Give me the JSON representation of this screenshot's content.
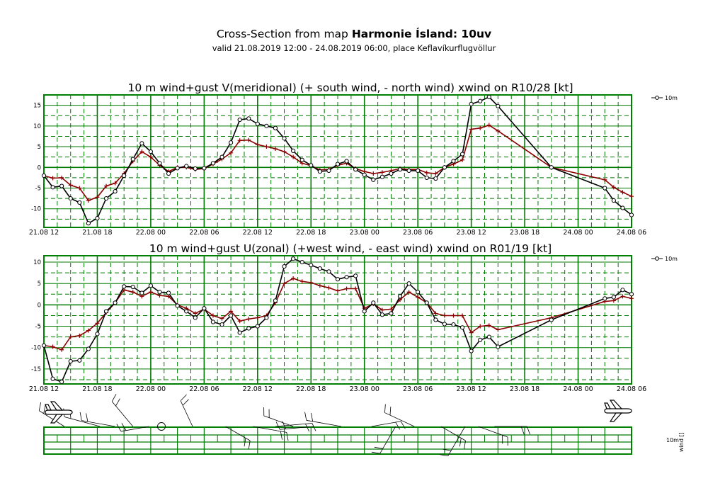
{
  "header": {
    "title_prefix": "Cross-Section from map ",
    "title_bold": "Harmonie Ísland: 10uv",
    "subtitle": "valid 21.08.2019 12:00 - 24.08.2019 06:00, place Keflavíkurflugvöllur"
  },
  "colors": {
    "wind": "#000000",
    "gust": "#8b0000",
    "grid": "#007a00",
    "frame": "#008000"
  },
  "chart_data": [
    {
      "type": "line",
      "title": "10 m wind+gust V(meridional) (+ south wind, - north wind) xwind on R10/28 [kt]",
      "x_unit": "hours since 21.08 12",
      "xlim": [
        0,
        66
      ],
      "ylim": [
        -14.5,
        17.5
      ],
      "yticks": [
        15,
        10,
        5,
        0,
        -5,
        -10
      ],
      "xtick_labels": [
        "21.08 12",
        "21.08 18",
        "22.08 00",
        "22.08 06",
        "22.08 12",
        "22.08 18",
        "23.08 00",
        "23.08 06",
        "23.08 12",
        "23.08 18",
        "24.08 00",
        "24.08 06"
      ],
      "legend": "10m",
      "series": [
        {
          "name": "10m",
          "x": [
            0,
            1,
            2,
            3,
            4,
            5,
            6,
            7,
            8,
            9,
            10,
            11,
            12,
            13,
            14,
            15,
            16,
            17,
            18,
            19,
            20,
            21,
            22,
            23,
            24,
            25,
            26,
            27,
            28,
            29,
            30,
            31,
            32,
            33,
            34,
            35,
            36,
            37,
            38,
            39,
            40,
            41,
            42,
            43,
            44,
            45,
            46,
            47,
            48,
            49,
            50,
            51,
            57,
            63,
            64,
            65,
            66
          ],
          "y": [
            -2,
            -4.8,
            -4.5,
            -7.5,
            -8.5,
            -13.5,
            -12.3,
            -7.5,
            -5.8,
            -2,
            2,
            5.8,
            3.8,
            1,
            -1.5,
            -0.2,
            0.3,
            -0.3,
            -0.2,
            1,
            2.5,
            6,
            11.5,
            11.8,
            10.5,
            10,
            9.5,
            7,
            4,
            1.8,
            0.5,
            -1,
            -0.8,
            0.8,
            1.5,
            -0.5,
            -1.8,
            -3,
            -2.3,
            -1.5,
            -0.5,
            -0.8,
            -0.8,
            -2.5,
            -2.7,
            0,
            1.5,
            3.2,
            15.3,
            16,
            17,
            14.8,
            0,
            -5,
            -8,
            -9.8,
            -11.5
          ]
        },
        {
          "x": [
            0,
            1,
            2,
            3,
            4,
            5,
            6,
            7,
            8,
            9,
            10,
            11,
            12,
            13,
            14,
            15,
            16,
            17,
            18,
            19,
            20,
            21,
            22,
            23,
            24,
            25,
            26,
            27,
            28,
            29,
            30,
            31,
            32,
            33,
            34,
            35,
            36,
            37,
            38,
            39,
            40,
            41,
            42,
            43,
            44,
            45,
            46,
            47,
            48,
            49,
            50,
            51,
            57,
            63,
            64,
            65,
            66
          ],
          "y": [
            -2,
            -2.6,
            -2.5,
            -4.3,
            -5,
            -8,
            -7.2,
            -4.5,
            -3.8,
            -1.5,
            1.5,
            3.8,
            2.5,
            0.5,
            -1,
            0,
            0,
            -0.5,
            -0.3,
            0.8,
            2,
            3.5,
            6.5,
            6.6,
            5.5,
            5,
            4.5,
            3.8,
            2.5,
            1,
            0.4,
            -0.6,
            -0.5,
            0.5,
            1,
            -0.3,
            -1,
            -1.5,
            -1.2,
            -0.8,
            -0.3,
            -0.5,
            -0.5,
            -1.3,
            -1.5,
            0,
            0.8,
            1.8,
            9.2,
            9.5,
            10.2,
            8.8,
            0,
            -3,
            -4.8,
            -6,
            -7
          ]
        }
      ]
    },
    {
      "type": "line",
      "title": "10 m wind+gust U(zonal) (+west wind, - east wind) xwind on R01/19 [kt]",
      "x_unit": "hours since 21.08 12",
      "xlim": [
        0,
        66
      ],
      "ylim": [
        -18.5,
        11.5
      ],
      "yticks": [
        10,
        5,
        0,
        -5,
        -10,
        -15
      ],
      "xtick_labels": [
        "21.08 12",
        "21.08 18",
        "22.08 00",
        "22.08 06",
        "22.08 12",
        "22.08 18",
        "23.08 00",
        "23.08 06",
        "23.08 12",
        "23.08 18",
        "24.08 00",
        "24.08 06"
      ],
      "legend": "10m",
      "series": [
        {
          "name": "10m",
          "x": [
            0,
            1,
            2,
            3,
            4,
            5,
            6,
            7,
            8,
            9,
            10,
            11,
            12,
            13,
            14,
            15,
            16,
            17,
            18,
            19,
            20,
            21,
            22,
            23,
            24,
            25,
            26,
            27,
            28,
            29,
            30,
            31,
            32,
            33,
            34,
            35,
            36,
            37,
            38,
            39,
            40,
            41,
            42,
            43,
            44,
            45,
            46,
            47,
            48,
            49,
            50,
            51,
            57,
            63,
            64,
            65,
            66
          ],
          "y": [
            -9.5,
            -17.3,
            -18,
            -13.2,
            -13,
            -10.3,
            -6.8,
            -1.5,
            0.5,
            4.3,
            4.2,
            2.8,
            4.5,
            3,
            2.8,
            -0.2,
            -1.5,
            -3,
            -0.8,
            -4,
            -4.6,
            -2.5,
            -6.5,
            -5.5,
            -5,
            -3,
            1,
            9,
            10.8,
            10,
            9.3,
            8.5,
            7.8,
            6,
            6.5,
            6.8,
            -1.5,
            0.5,
            -2.3,
            -2,
            2,
            5,
            3,
            0.5,
            -3.5,
            -4.5,
            -4.6,
            -5.3,
            -10.8,
            -8.2,
            -7.5,
            -9.8,
            -3.5,
            1.5,
            1.8,
            3.5,
            2.5
          ]
        },
        {
          "x": [
            0,
            1,
            2,
            3,
            4,
            5,
            6,
            7,
            8,
            9,
            10,
            11,
            12,
            13,
            14,
            15,
            16,
            17,
            18,
            19,
            20,
            21,
            22,
            23,
            24,
            25,
            26,
            27,
            28,
            29,
            30,
            31,
            32,
            33,
            34,
            35,
            36,
            37,
            38,
            39,
            40,
            41,
            42,
            43,
            44,
            45,
            46,
            47,
            48,
            49,
            50,
            51,
            57,
            63,
            64,
            65,
            66
          ],
          "y": [
            -9.5,
            -9.8,
            -10.5,
            -7.5,
            -7.2,
            -6,
            -4.3,
            -1.8,
            0.5,
            3.5,
            3,
            2,
            3,
            2.2,
            2,
            0,
            -0.8,
            -2,
            -1,
            -2.5,
            -3.2,
            -1.5,
            -3.8,
            -3.3,
            -3,
            -2.5,
            0.5,
            5,
            6.2,
            5.5,
            5.2,
            4.5,
            4,
            3.3,
            3.8,
            3.8,
            -0.8,
            0.2,
            -1.2,
            -1,
            1.2,
            3,
            1.8,
            0.5,
            -2,
            -2.5,
            -2.5,
            -2.5,
            -6.5,
            -5,
            -4.8,
            -5.8,
            -3,
            0.8,
            1,
            2,
            1.5
          ]
        }
      ]
    },
    {
      "type": "table",
      "legend": "10m",
      "side_label": "wind [] ",
      "barbs": [
        {
          "t": 2.3,
          "angle": -58,
          "len": 42
        },
        {
          "t": 6.3,
          "angle": -75,
          "len": 52
        },
        {
          "t": 8.0,
          "angle": -80,
          "len": 48
        },
        {
          "t": 10.0,
          "angle": -40,
          "len": 46
        },
        {
          "t": 11.8,
          "angle": -100,
          "len": 40
        },
        {
          "t": 13.2,
          "angle": 0,
          "len": 0,
          "calm": true
        },
        {
          "t": 16.7,
          "angle": -25,
          "len": 40
        },
        {
          "t": 20.4,
          "angle": 120,
          "len": 40
        },
        {
          "t": 23.5,
          "angle": 100,
          "len": 48
        },
        {
          "t": 26.0,
          "angle": 85,
          "len": 52
        },
        {
          "t": 28.0,
          "angle": -70,
          "len": 44
        },
        {
          "t": 30.3,
          "angle": -95,
          "len": 48
        },
        {
          "t": 33.4,
          "angle": -80,
          "len": 50
        },
        {
          "t": 36.8,
          "angle": 80,
          "len": 42
        },
        {
          "t": 39.5,
          "angle": -150,
          "len": 44
        },
        {
          "t": 41.6,
          "angle": -65,
          "len": 46
        },
        {
          "t": 44.6,
          "angle": 120,
          "len": 40
        },
        {
          "t": 47.3,
          "angle": -150,
          "len": 48
        },
        {
          "t": 48.8,
          "angle": 110,
          "len": 44
        },
        {
          "t": 50.6,
          "angle": 90,
          "len": 46
        }
      ]
    }
  ]
}
